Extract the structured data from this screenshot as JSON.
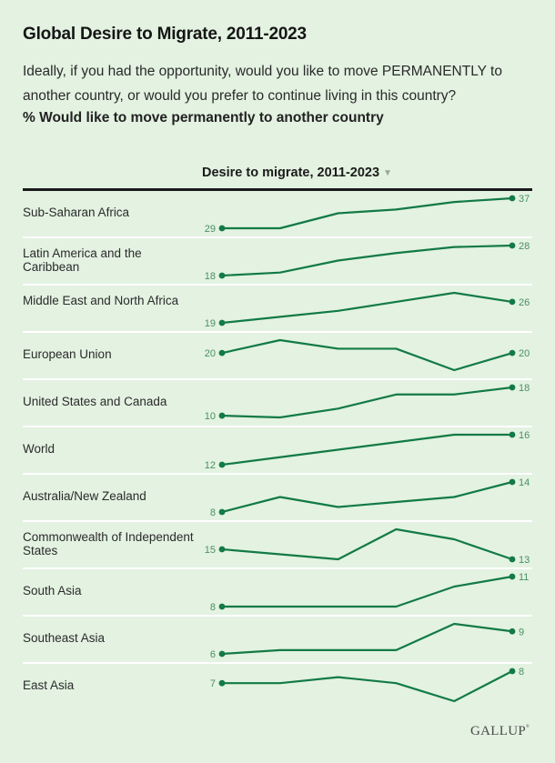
{
  "title": "Global Desire to Migrate, 2011-2023",
  "subtitle": "Ideally, if you had the opportunity, would you like to move PERMANENTLY to another country, or would you prefer to continue living in this country?",
  "measure": "% Would like to move permanently to another country",
  "column_header": "Desire to migrate, 2011-2023",
  "sort_icon": "▼",
  "logo": "GALLUP",
  "colors": {
    "line": "#127a45",
    "value_label": "#4a8f62",
    "background": "#e3f2e1"
  },
  "chart_data": {
    "type": "line",
    "title": "Desire to migrate, 2011-2023",
    "note": "Small-multiple sparklines, one per region; each sparkline independently scaled. Only first and last values are labeled; intermediate values estimated.",
    "points_per_series": 6,
    "series": [
      {
        "name": "Sub-Saharan Africa",
        "values": [
          29,
          29,
          33,
          34,
          36,
          37
        ]
      },
      {
        "name": "Latin America and the Caribbean",
        "values": [
          18,
          19,
          23,
          25.5,
          27.5,
          28
        ]
      },
      {
        "name": "Middle East and North Africa",
        "values": [
          19,
          21,
          23,
          26,
          29,
          26
        ]
      },
      {
        "name": "European Union",
        "values": [
          20,
          23,
          21,
          21,
          16,
          20
        ]
      },
      {
        "name": "United States and Canada",
        "values": [
          10,
          9.5,
          12,
          16,
          16,
          18
        ]
      },
      {
        "name": "World",
        "values": [
          12,
          13,
          14,
          15,
          16,
          16
        ]
      },
      {
        "name": "Australia/New Zealand",
        "values": [
          8,
          11,
          9,
          10,
          11,
          14
        ]
      },
      {
        "name": "Commonwealth of Independent States",
        "values": [
          15,
          14,
          13,
          19,
          17,
          13
        ]
      },
      {
        "name": "South Asia",
        "values": [
          8,
          8,
          8,
          8,
          10,
          11
        ]
      },
      {
        "name": "Southeast Asia",
        "values": [
          6,
          6.5,
          6.5,
          6.5,
          10,
          9
        ]
      },
      {
        "name": "East Asia",
        "values": [
          7,
          7,
          7.5,
          7,
          5.5,
          8
        ]
      }
    ],
    "first_labels": [
      "29",
      "18",
      "19",
      "20",
      "10",
      "12",
      "8",
      "15",
      "8",
      "6",
      "7"
    ],
    "last_labels": [
      "37",
      "28",
      "26",
      "20",
      "18",
      "16",
      "14",
      "13",
      "11",
      "9",
      "8"
    ]
  }
}
